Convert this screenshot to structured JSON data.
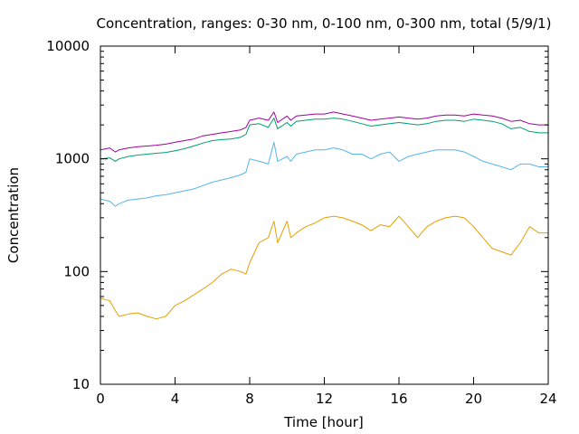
{
  "chart_data": {
    "type": "line",
    "title": "Concentration, ranges: 0-30 nm, 0-100 nm, 0-300 nm, total (5/9/1)",
    "xlabel": "Time [hour]",
    "ylabel": "Concentration",
    "xlim": [
      0,
      24
    ],
    "ylim": [
      10,
      10000
    ],
    "yscale": "log",
    "grid": false,
    "legend": "none",
    "xticks": [
      0,
      4,
      8,
      12,
      16,
      20,
      24
    ],
    "xtick_labels": [
      "0",
      "4",
      "8",
      "12",
      "16",
      "20",
      "24"
    ],
    "yticks": [
      10,
      100,
      1000,
      10000
    ],
    "ytick_labels": [
      "10",
      "100",
      "1000",
      "10000"
    ],
    "x": [
      0,
      0.5,
      0.8,
      1,
      1.5,
      2,
      2.5,
      3,
      3.5,
      4,
      4.5,
      5,
      5.5,
      6,
      6.5,
      7,
      7.5,
      7.8,
      8,
      8.5,
      9,
      9.3,
      9.5,
      10,
      10.2,
      10.5,
      11,
      11.5,
      12,
      12.5,
      13,
      13.5,
      14,
      14.5,
      15,
      15.5,
      16,
      16.5,
      17,
      17.5,
      18,
      18.5,
      19,
      19.5,
      20,
      20.5,
      21,
      21.5,
      22,
      22.5,
      23,
      23.5,
      24
    ],
    "series": [
      {
        "color": "#a000a0",
        "values": [
          1200,
          1250,
          1150,
          1200,
          1250,
          1280,
          1300,
          1320,
          1350,
          1400,
          1450,
          1500,
          1600,
          1650,
          1700,
          1750,
          1800,
          1900,
          2200,
          2300,
          2200,
          2600,
          2100,
          2400,
          2200,
          2400,
          2450,
          2500,
          2500,
          2600,
          2500,
          2400,
          2300,
          2200,
          2250,
          2300,
          2350,
          2300,
          2250,
          2300,
          2400,
          2450,
          2450,
          2400,
          2500,
          2450,
          2400,
          2300,
          2150,
          2200,
          2050,
          2000,
          2000
        ]
      },
      {
        "color": "#009e73",
        "values": [
          1000,
          1020,
          950,
          1000,
          1050,
          1080,
          1100,
          1120,
          1140,
          1180,
          1230,
          1300,
          1380,
          1450,
          1480,
          1500,
          1550,
          1650,
          2000,
          2050,
          1900,
          2300,
          1850,
          2100,
          1950,
          2150,
          2200,
          2250,
          2250,
          2300,
          2250,
          2150,
          2050,
          1950,
          2000,
          2050,
          2100,
          2050,
          2000,
          2050,
          2150,
          2200,
          2200,
          2150,
          2250,
          2200,
          2150,
          2050,
          1850,
          1900,
          1750,
          1700,
          1700
        ]
      },
      {
        "color": "#56b4e9",
        "values": [
          440,
          420,
          380,
          400,
          430,
          440,
          450,
          470,
          480,
          500,
          520,
          540,
          580,
          620,
          650,
          680,
          720,
          760,
          1000,
          950,
          900,
          1400,
          950,
          1050,
          950,
          1100,
          1150,
          1200,
          1200,
          1250,
          1200,
          1100,
          1100,
          1000,
          1100,
          1150,
          950,
          1050,
          1100,
          1150,
          1200,
          1200,
          1200,
          1150,
          1050,
          950,
          900,
          850,
          800,
          900,
          900,
          850,
          850
        ]
      },
      {
        "color": "#e69f00",
        "values": [
          58,
          55,
          45,
          40,
          42,
          43,
          40,
          38,
          40,
          50,
          55,
          62,
          70,
          80,
          95,
          105,
          100,
          95,
          120,
          180,
          200,
          280,
          180,
          280,
          200,
          220,
          250,
          270,
          300,
          310,
          300,
          280,
          260,
          230,
          260,
          250,
          310,
          250,
          200,
          250,
          280,
          300,
          310,
          300,
          250,
          200,
          160,
          150,
          140,
          180,
          250,
          220,
          220
        ]
      }
    ]
  }
}
